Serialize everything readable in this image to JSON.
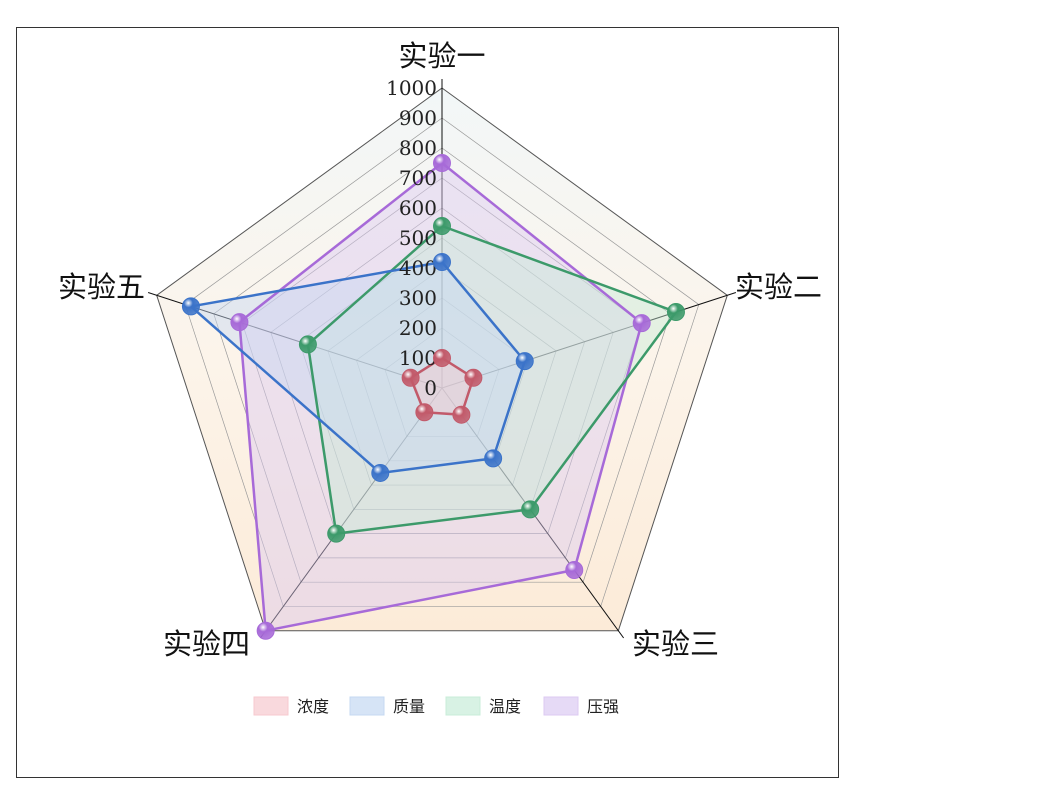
{
  "chart_data": {
    "type": "radar",
    "categories": [
      "实验一",
      "实验二",
      "实验三",
      "实验四",
      "实验五"
    ],
    "rlim": [
      0,
      1000
    ],
    "ticks": [
      0,
      100,
      200,
      300,
      400,
      500,
      600,
      700,
      800,
      900,
      1000
    ],
    "series": [
      {
        "name": "浓度",
        "values": [
          100,
          110,
          110,
          100,
          110
        ],
        "color": "#c25a6a",
        "fill": "#f7c9cf"
      },
      {
        "name": "质量",
        "values": [
          420,
          290,
          290,
          350,
          880
        ],
        "color": "#3b73c9",
        "fill": "#c5d8f2"
      },
      {
        "name": "温度",
        "values": [
          540,
          820,
          500,
          600,
          470
        ],
        "color": "#3c9a6a",
        "fill": "#c8ecd8"
      },
      {
        "name": "压强",
        "values": [
          750,
          700,
          750,
          1000,
          710
        ],
        "color": "#a76ad8",
        "fill": "#dccaf2"
      }
    ],
    "band_colors": [
      "#f2f7f8",
      "#fcf4ea",
      "#fcebd8"
    ],
    "legend_position": "bottom"
  }
}
